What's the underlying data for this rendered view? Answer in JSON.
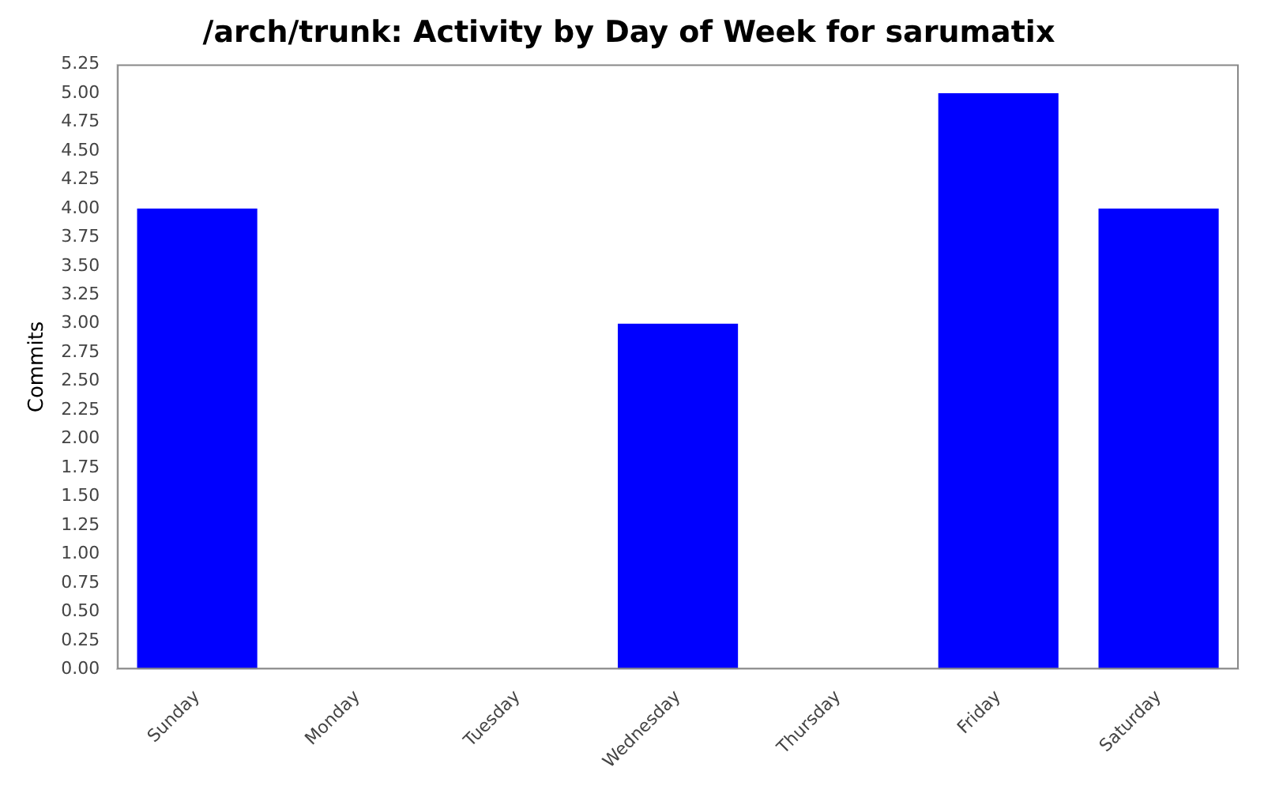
{
  "chart_data": {
    "type": "bar",
    "title": "/arch/trunk: Activity by Day of Week for sarumatix",
    "ylabel": "Commits",
    "categories": [
      "Sunday",
      "Monday",
      "Tuesday",
      "Wednesday",
      "Thursday",
      "Friday",
      "Saturday"
    ],
    "values": [
      4,
      0,
      0,
      3,
      0,
      5,
      4
    ],
    "color": "#0000ff",
    "ylim": [
      0,
      5.25
    ],
    "yticks": [
      {
        "value": 0,
        "label": "0.00"
      },
      {
        "value": 0.25,
        "label": "0.25"
      },
      {
        "value": 0.5,
        "label": "0.50"
      },
      {
        "value": 0.75,
        "label": "0.75"
      },
      {
        "value": 1,
        "label": "1.00"
      },
      {
        "value": 1.25,
        "label": "1.25"
      },
      {
        "value": 1.5,
        "label": "1.50"
      },
      {
        "value": 1.75,
        "label": "1.75"
      },
      {
        "value": 2,
        "label": "2.00"
      },
      {
        "value": 2.25,
        "label": "2.25"
      },
      {
        "value": 2.5,
        "label": "2.50"
      },
      {
        "value": 2.75,
        "label": "2.75"
      },
      {
        "value": 3,
        "label": "3.00"
      },
      {
        "value": 3.25,
        "label": "3.25"
      },
      {
        "value": 3.5,
        "label": "3.50"
      },
      {
        "value": 3.75,
        "label": "3.75"
      },
      {
        "value": 4,
        "label": "4.00"
      },
      {
        "value": 4.25,
        "label": "4.25"
      },
      {
        "value": 4.5,
        "label": "4.50"
      },
      {
        "value": 4.75,
        "label": "4.75"
      },
      {
        "value": 5,
        "label": "5.00"
      },
      {
        "value": 5.25,
        "label": "5.25"
      }
    ],
    "grid": false,
    "legend": false
  }
}
